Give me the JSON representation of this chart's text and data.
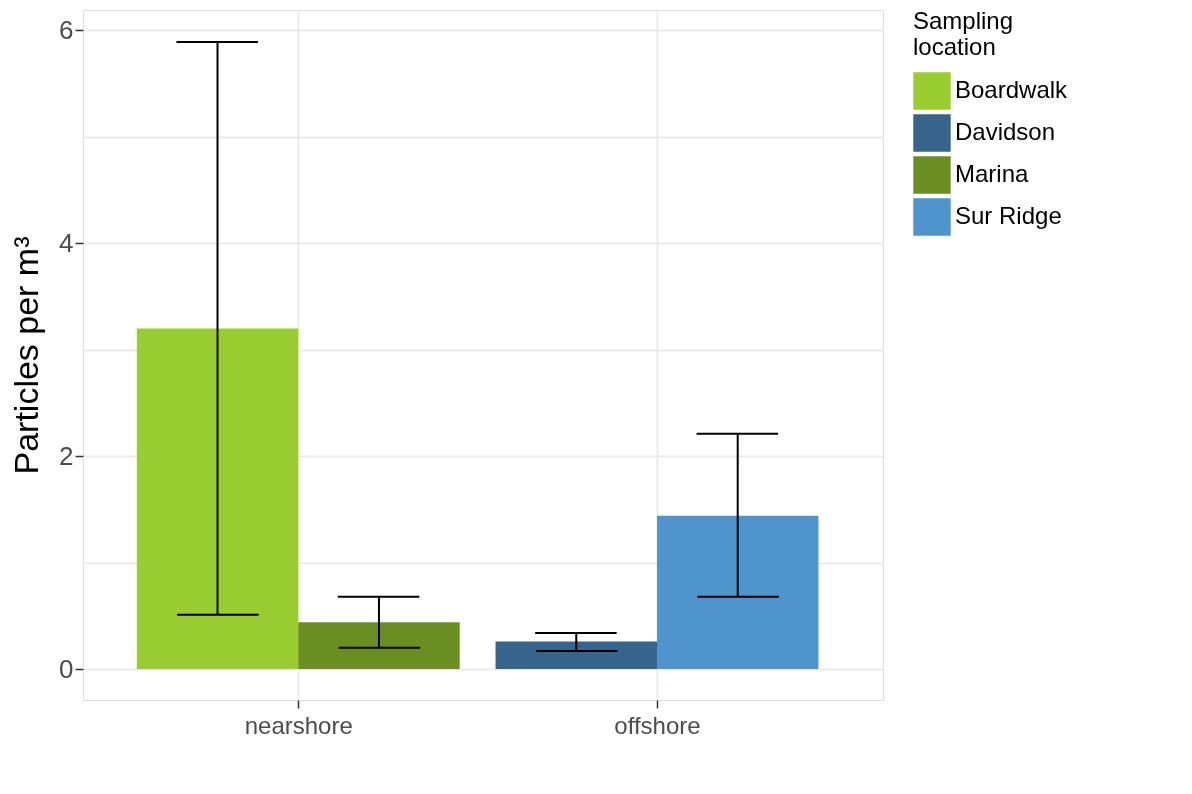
{
  "chart_data": {
    "type": "bar",
    "ylabel": "Particles per m³",
    "legend_title": "Sampling location",
    "categories": [
      "nearshore",
      "offshore"
    ],
    "series": [
      {
        "name": "Boardwalk",
        "color": "#9acd32",
        "values": [
          3.2,
          null
        ],
        "errors": [
          [
            0.51,
            5.89
          ],
          null
        ]
      },
      {
        "name": "Davidson",
        "color": "#36648b",
        "values": [
          null,
          0.26
        ],
        "errors": [
          null,
          [
            0.17,
            0.34
          ]
        ]
      },
      {
        "name": "Marina",
        "color": "#6b8e23",
        "values": [
          0.44,
          null
        ],
        "errors": [
          [
            0.2,
            0.68
          ],
          null
        ]
      },
      {
        "name": "Sur Ridge",
        "color": "#4f94cd",
        "values": [
          null,
          1.44
        ],
        "errors": [
          null,
          [
            0.68,
            2.21
          ]
        ]
      }
    ],
    "ylim": [
      -0.29,
      6.19
    ],
    "yticks": [
      0,
      {
        "value": 1,
        "label": null
      },
      2,
      {
        "value": 3,
        "label": null
      },
      4,
      {
        "value": 5,
        "label": null
      },
      6
    ],
    "grid": true,
    "legend": "right"
  }
}
